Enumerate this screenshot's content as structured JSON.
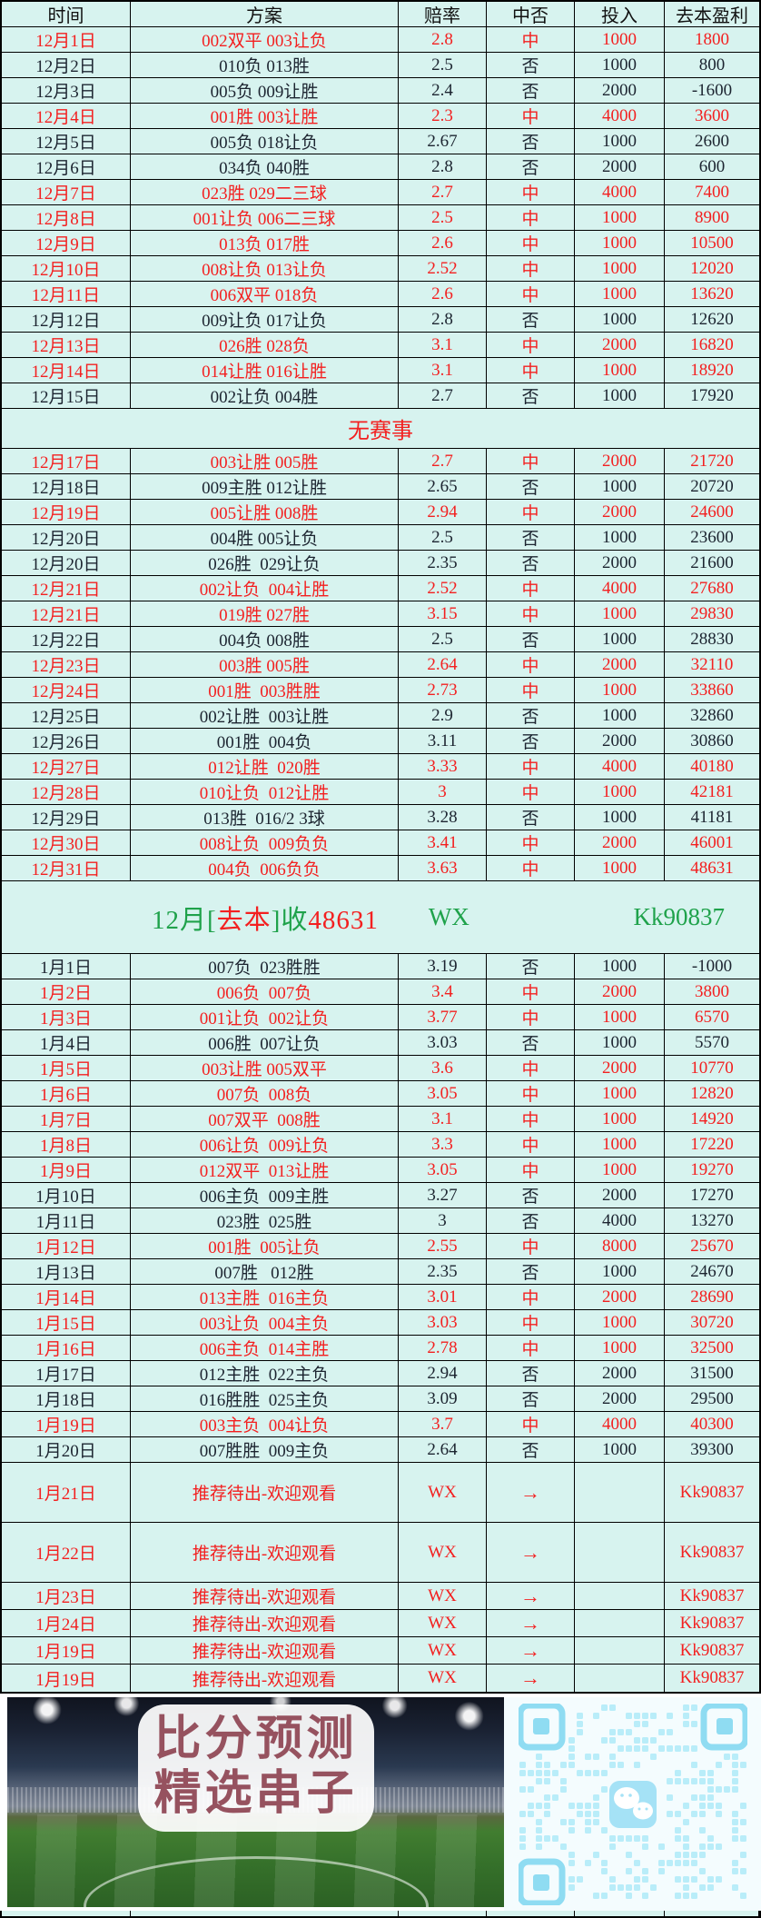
{
  "colors": {
    "background_cyan": "#d7f3ef",
    "hit_red": "#f32020",
    "summary_green": "#1fa24b",
    "text_dark": "#1c2430",
    "qr_module_blue": "#b9edf9"
  },
  "table": {
    "columns": [
      "时间",
      "方案",
      "赔率",
      "中否",
      "投入",
      "去本盈利"
    ],
    "rows": [
      {
        "type": "data",
        "win": true,
        "date": "12月1日",
        "plan": "002双平 003让负",
        "odds": "2.8",
        "hit": "中",
        "stake": "1000",
        "profit": "1800"
      },
      {
        "type": "data",
        "win": false,
        "date": "12月2日",
        "plan": "010负 013胜",
        "odds": "2.5",
        "hit": "否",
        "stake": "1000",
        "profit": "800"
      },
      {
        "type": "data",
        "win": false,
        "date": "12月3日",
        "plan": "005负 009让胜",
        "odds": "2.4",
        "hit": "否",
        "stake": "2000",
        "profit": "-1600"
      },
      {
        "type": "data",
        "win": true,
        "date": "12月4日",
        "plan": "001胜 003让胜",
        "odds": "2.3",
        "hit": "中",
        "stake": "4000",
        "profit": "3600"
      },
      {
        "type": "data",
        "win": false,
        "date": "12月5日",
        "plan": "005负 018让负",
        "odds": "2.67",
        "hit": "否",
        "stake": "1000",
        "profit": "2600"
      },
      {
        "type": "data",
        "win": false,
        "date": "12月6日",
        "plan": "034负 040胜",
        "odds": "2.8",
        "hit": "否",
        "stake": "2000",
        "profit": "600"
      },
      {
        "type": "data",
        "win": true,
        "date": "12月7日",
        "plan": "023胜 029二三球",
        "odds": "2.7",
        "hit": "中",
        "stake": "4000",
        "profit": "7400"
      },
      {
        "type": "data",
        "win": true,
        "date": "12月8日",
        "plan": "001让负 006二三球",
        "odds": "2.5",
        "hit": "中",
        "stake": "1000",
        "profit": "8900"
      },
      {
        "type": "data",
        "win": true,
        "date": "12月9日",
        "plan": "013负 017胜",
        "odds": "2.6",
        "hit": "中",
        "stake": "1000",
        "profit": "10500"
      },
      {
        "type": "data",
        "win": true,
        "date": "12月10日",
        "plan": "008让负 013让负",
        "odds": "2.52",
        "hit": "中",
        "stake": "1000",
        "profit": "12020"
      },
      {
        "type": "data",
        "win": true,
        "date": "12月11日",
        "plan": "006双平 018负",
        "odds": "2.6",
        "hit": "中",
        "stake": "1000",
        "profit": "13620"
      },
      {
        "type": "data",
        "win": false,
        "date": "12月12日",
        "plan": "009让负 017让负",
        "odds": "2.8",
        "hit": "否",
        "stake": "1000",
        "profit": "12620"
      },
      {
        "type": "data",
        "win": true,
        "date": "12月13日",
        "plan": "026胜 028负",
        "odds": "3.1",
        "hit": "中",
        "stake": "2000",
        "profit": "16820"
      },
      {
        "type": "data",
        "win": true,
        "date": "12月14日",
        "plan": "014让胜 016让胜",
        "odds": "3.1",
        "hit": "中",
        "stake": "1000",
        "profit": "18920"
      },
      {
        "type": "data",
        "win": false,
        "date": "12月15日",
        "plan": "002让负 004胜",
        "odds": "2.7",
        "hit": "否",
        "stake": "1000",
        "profit": "17920"
      },
      {
        "type": "no_event",
        "text": "无赛事"
      },
      {
        "type": "data",
        "win": true,
        "date": "12月17日",
        "plan": "003让胜 005胜",
        "odds": "2.7",
        "hit": "中",
        "stake": "2000",
        "profit": "21720"
      },
      {
        "type": "data",
        "win": false,
        "date": "12月18日",
        "plan": "009主胜 012让胜",
        "odds": "2.65",
        "hit": "否",
        "stake": "1000",
        "profit": "20720"
      },
      {
        "type": "data",
        "win": true,
        "date": "12月19日",
        "plan": "005让胜 008胜",
        "odds": "2.94",
        "hit": "中",
        "stake": "2000",
        "profit": "24600"
      },
      {
        "type": "data",
        "win": false,
        "date": "12月20日",
        "plan": "004胜 005让负",
        "odds": "2.5",
        "hit": "否",
        "stake": "1000",
        "profit": "23600"
      },
      {
        "type": "data",
        "win": false,
        "date": "12月20日",
        "plan": "026胜  029让负",
        "odds": "2.35",
        "hit": "否",
        "stake": "2000",
        "profit": "21600"
      },
      {
        "type": "data",
        "win": true,
        "date": "12月21日",
        "plan": "002让负  004让胜",
        "odds": "2.52",
        "hit": "中",
        "stake": "4000",
        "profit": "27680"
      },
      {
        "type": "data",
        "win": true,
        "date": "12月21日",
        "plan": "019胜 027胜",
        "odds": "3.15",
        "hit": "中",
        "stake": "1000",
        "profit": "29830"
      },
      {
        "type": "data",
        "win": false,
        "date": "12月22日",
        "plan": "004负 008胜",
        "odds": "2.5",
        "hit": "否",
        "stake": "1000",
        "profit": "28830"
      },
      {
        "type": "data",
        "win": true,
        "date": "12月23日",
        "plan": "003胜 005胜",
        "odds": "2.64",
        "hit": "中",
        "stake": "2000",
        "profit": "32110"
      },
      {
        "type": "data",
        "win": true,
        "date": "12月24日",
        "plan": "001胜  003胜胜",
        "odds": "2.73",
        "hit": "中",
        "stake": "1000",
        "profit": "33860"
      },
      {
        "type": "data",
        "win": false,
        "date": "12月25日",
        "plan": "002让胜  003让胜",
        "odds": "2.9",
        "hit": "否",
        "stake": "1000",
        "profit": "32860"
      },
      {
        "type": "data",
        "win": false,
        "date": "12月26日",
        "plan": "001胜  004负",
        "odds": "3.11",
        "hit": "否",
        "stake": "2000",
        "profit": "30860"
      },
      {
        "type": "data",
        "win": true,
        "date": "12月27日",
        "plan": "012让胜  020胜",
        "odds": "3.33",
        "hit": "中",
        "stake": "4000",
        "profit": "40180"
      },
      {
        "type": "data",
        "win": true,
        "date": "12月28日",
        "plan": "010让负  012让胜",
        "odds": "3",
        "hit": "中",
        "stake": "1000",
        "profit": "42181"
      },
      {
        "type": "data",
        "win": false,
        "date": "12月29日",
        "plan": "013胜  016/2 3球",
        "odds": "3.28",
        "hit": "否",
        "stake": "1000",
        "profit": "41181"
      },
      {
        "type": "data",
        "win": true,
        "date": "12月30日",
        "plan": "008让负  009负负",
        "odds": "3.41",
        "hit": "中",
        "stake": "2000",
        "profit": "46001"
      },
      {
        "type": "data",
        "win": true,
        "date": "12月31日",
        "plan": "004负  006负负",
        "odds": "3.63",
        "hit": "中",
        "stake": "1000",
        "profit": "48631"
      },
      {
        "type": "summary",
        "segments": [
          {
            "text": "12月[",
            "color": "green"
          },
          {
            "text": "去本",
            "color": "red"
          },
          {
            "text": "]收",
            "color": "green"
          },
          {
            "text": "48631",
            "color": "red"
          }
        ],
        "wx": "WX",
        "code": "Kk90837"
      },
      {
        "type": "data",
        "win": false,
        "date": "1月1日",
        "plan": "007负  023胜胜",
        "odds": "3.19",
        "hit": "否",
        "stake": "1000",
        "profit": "-1000"
      },
      {
        "type": "data",
        "win": true,
        "date": "1月2日",
        "plan": "006负  007负",
        "odds": "3.4",
        "hit": "中",
        "stake": "2000",
        "profit": "3800"
      },
      {
        "type": "data",
        "win": true,
        "date": "1月3日",
        "plan": "001让负  002让负",
        "odds": "3.77",
        "hit": "中",
        "stake": "1000",
        "profit": "6570"
      },
      {
        "type": "data",
        "win": false,
        "date": "1月4日",
        "plan": "006胜  007让负",
        "odds": "3.03",
        "hit": "否",
        "stake": "1000",
        "profit": "5570"
      },
      {
        "type": "data",
        "win": true,
        "date": "1月5日",
        "plan": "003让胜 005双平",
        "odds": "3.6",
        "hit": "中",
        "stake": "2000",
        "profit": "10770"
      },
      {
        "type": "data",
        "win": true,
        "date": "1月6日",
        "plan": "007负  008负",
        "odds": "3.05",
        "hit": "中",
        "stake": "1000",
        "profit": "12820"
      },
      {
        "type": "data",
        "win": true,
        "date": "1月7日",
        "plan": "007双平  008胜",
        "odds": "3.1",
        "hit": "中",
        "stake": "1000",
        "profit": "14920"
      },
      {
        "type": "data",
        "win": true,
        "date": "1月8日",
        "plan": "006让负  009让负",
        "odds": "3.3",
        "hit": "中",
        "stake": "1000",
        "profit": "17220"
      },
      {
        "type": "data",
        "win": true,
        "date": "1月9日",
        "plan": "012双平  013让胜",
        "odds": "3.05",
        "hit": "中",
        "stake": "1000",
        "profit": "19270"
      },
      {
        "type": "data",
        "win": false,
        "date": "1月10日",
        "plan": "006主负  009主胜",
        "odds": "3.27",
        "hit": "否",
        "stake": "2000",
        "profit": "17270"
      },
      {
        "type": "data",
        "win": false,
        "date": "1月11日",
        "plan": "023胜  025胜",
        "odds": "3",
        "hit": "否",
        "stake": "4000",
        "profit": "13270"
      },
      {
        "type": "data",
        "win": true,
        "date": "1月12日",
        "plan": "001胜  005让负",
        "odds": "2.55",
        "hit": "中",
        "stake": "8000",
        "profit": "25670"
      },
      {
        "type": "data",
        "win": false,
        "date": "1月13日",
        "plan": "007胜   012胜",
        "odds": "2.35",
        "hit": "否",
        "stake": "1000",
        "profit": "24670"
      },
      {
        "type": "data",
        "win": true,
        "date": "1月14日",
        "plan": "013主胜  016主负",
        "odds": "3.01",
        "hit": "中",
        "stake": "2000",
        "profit": "28690"
      },
      {
        "type": "data",
        "win": true,
        "date": "1月15日",
        "plan": "003让负  004主负",
        "odds": "3.03",
        "hit": "中",
        "stake": "1000",
        "profit": "30720"
      },
      {
        "type": "data",
        "win": true,
        "date": "1月16日",
        "plan": "006主负  014主胜",
        "odds": "2.78",
        "hit": "中",
        "stake": "1000",
        "profit": "32500"
      },
      {
        "type": "data",
        "win": false,
        "date": "1月17日",
        "plan": "012主胜  022主负",
        "odds": "2.94",
        "hit": "否",
        "stake": "2000",
        "profit": "31500"
      },
      {
        "type": "data",
        "win": false,
        "date": "1月18日",
        "plan": "016胜胜  025主负",
        "odds": "3.09",
        "hit": "否",
        "stake": "2000",
        "profit": "29500"
      },
      {
        "type": "data",
        "win": true,
        "date": "1月19日",
        "plan": "003主负  004让负",
        "odds": "3.7",
        "hit": "中",
        "stake": "4000",
        "profit": "40300"
      },
      {
        "type": "data",
        "win": false,
        "date": "1月20日",
        "plan": "007胜胜  009主负",
        "odds": "2.64",
        "hit": "否",
        "stake": "1000",
        "profit": "39300"
      },
      {
        "type": "promo",
        "tall": true,
        "date": "1月21日",
        "plan": "推荐待出-欢迎观看",
        "odds": "WX",
        "hit": "→",
        "stake": "",
        "profit": "Kk90837"
      },
      {
        "type": "promo",
        "tall": true,
        "date": "1月22日",
        "plan": "推荐待出-欢迎观看",
        "odds": "WX",
        "hit": "→",
        "stake": "",
        "profit": "Kk90837"
      },
      {
        "type": "promo",
        "tall": false,
        "date": "1月23日",
        "plan": "推荐待出-欢迎观看",
        "odds": "WX",
        "hit": "→",
        "stake": "",
        "profit": "Kk90837"
      },
      {
        "type": "promo",
        "tall": false,
        "date": "1月24日",
        "plan": "推荐待出-欢迎观看",
        "odds": "WX",
        "hit": "→",
        "stake": "",
        "profit": "Kk90837"
      },
      {
        "type": "promo",
        "tall": false,
        "date": "1月19日",
        "plan": "推荐待出-欢迎观看",
        "odds": "WX",
        "hit": "→",
        "stake": "",
        "profit": "Kk90837"
      },
      {
        "type": "promo",
        "tall": false,
        "date": "1月19日",
        "plan": "推荐待出-欢迎观看",
        "odds": "WX",
        "hit": "→",
        "stake": "",
        "profit": "Kk90837"
      }
    ]
  },
  "banner": {
    "line1": "比分预测",
    "line2": "精选串子"
  }
}
